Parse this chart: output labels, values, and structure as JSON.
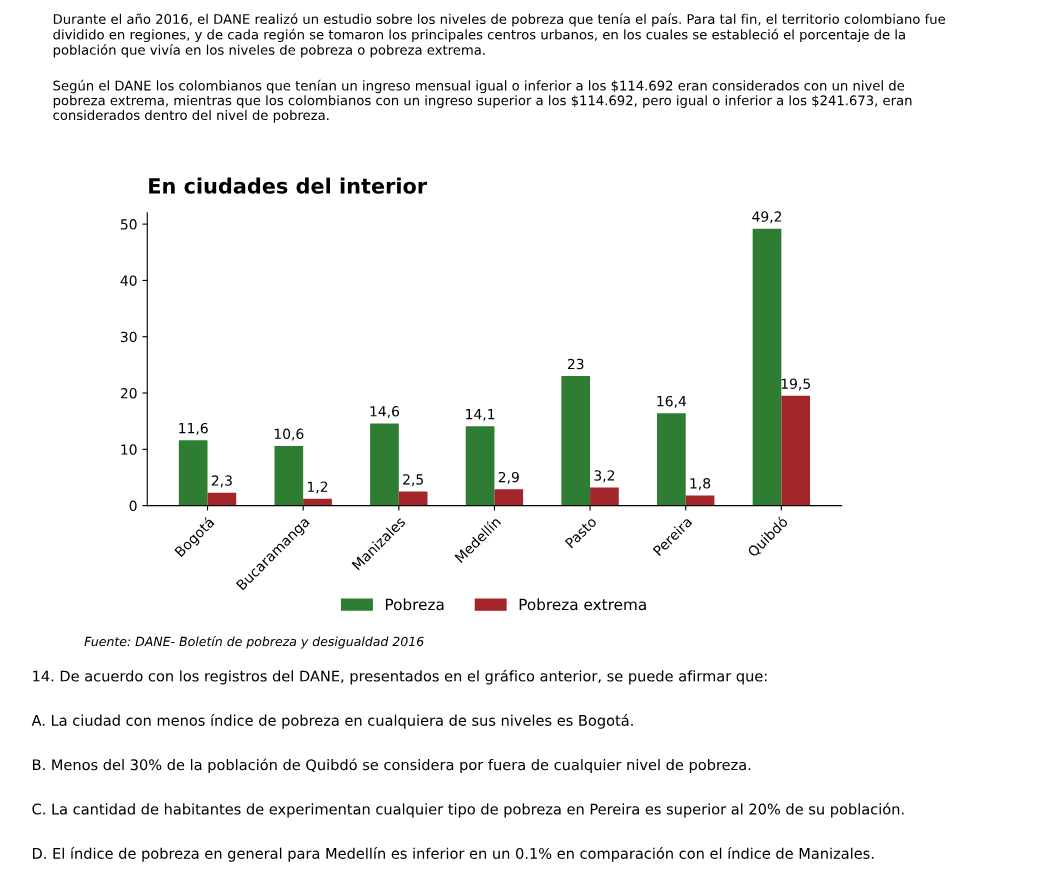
{
  "chart_data": {
    "type": "bar",
    "title": "En ciudades del interior",
    "categories": [
      "Bogotá",
      "Bucaramanga",
      "Manizales",
      "Medellín",
      "Pasto",
      "Pereira",
      "Quibdó"
    ],
    "series": [
      {
        "name": "Pobreza",
        "color": "#2e7d32",
        "values": [
          11.6,
          10.6,
          14.6,
          14.1,
          23,
          16.4,
          49.2
        ],
        "value_labels": [
          "11,6",
          "10,6",
          "14,6",
          "14,1",
          "23",
          "16,4",
          "49,2"
        ]
      },
      {
        "name": "Pobreza extrema",
        "color": "#a3262a",
        "values": [
          2.3,
          1.2,
          2.5,
          2.9,
          3.2,
          1.8,
          19.5
        ],
        "value_labels": [
          "2,3",
          "1,2",
          "2,5",
          "2,9",
          "3,2",
          "1,8",
          "19,5"
        ]
      }
    ],
    "ylim": [
      0,
      52
    ],
    "yticks": [
      0,
      10,
      20,
      30,
      40,
      50
    ],
    "grid": false,
    "legend": "bottom",
    "annotations": [
      "Durante el año 2016, el DANE realizó un estudio sobre los niveles de pobreza que tenía el país. Para tal fin, el territorio colombiano fue dividido en regiones, y de cada región se tomaron los principales centros urbanos, en los cuales se estableció el porcentaje de la población que vivía en los niveles de pobreza o pobreza extrema.",
      "Según el DANE los colombianos que tenían un ingreso mensual igual o inferior a los $114.692 eran considerados con un nivel de pobreza extrema, mientras que los colombianos con un ingreso superior a los $114.692, pero igual o inferior a los $241.673, eran considerados dentro del nivel de pobreza.",
      "Fuente: DANE- Boletín de pobreza y desigualdad 2016",
      "14. De acuerdo con los registros del DANE, presentados en el gráfico anterior, se puede afirmar que:",
      "A. La ciudad con menos índice de pobreza en cualquiera de sus niveles es Bogotá.",
      "B. Menos del 30% de la población de Quibdó se considera por fuera de cualquier nivel de pobreza.",
      "C. La cantidad de habitantes de experimentan cualquier tipo de pobreza en Pereira es superior al 20% de su población.",
      "D. El índice de pobreza en general para Medellín es inferior en un 0.1% en comparación con el índice de Manizales."
    ]
  }
}
